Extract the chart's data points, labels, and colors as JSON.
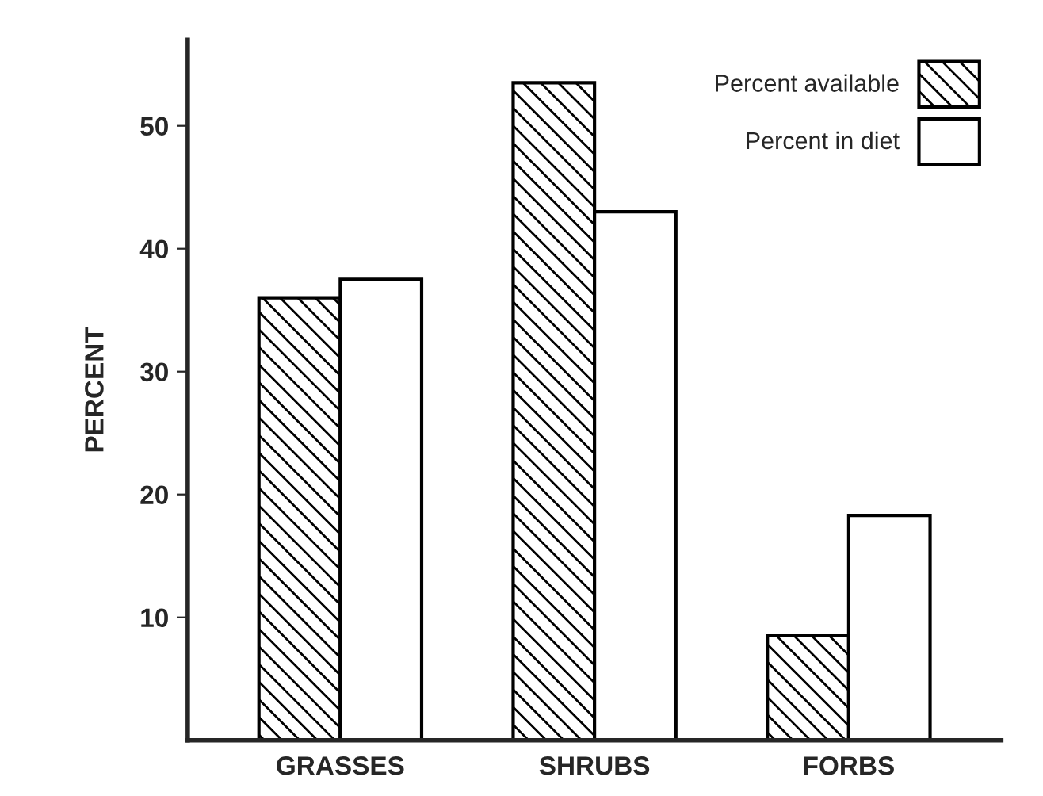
{
  "chart_data": {
    "type": "bar",
    "ylabel": "PERCENT",
    "categories": [
      "GRASSES",
      "SHRUBS",
      "FORBS"
    ],
    "series": [
      {
        "name": "Percent available",
        "color": "#000000",
        "values": [
          36,
          53.5,
          8.5
        ]
      },
      {
        "name": "Percent in diet",
        "color": "#ffffff",
        "values": [
          37.5,
          43,
          18.3
        ]
      }
    ],
    "ylim": [
      0,
      57
    ],
    "yticks": [
      10,
      20,
      30,
      40,
      50
    ],
    "grid": false,
    "legend": "upper right"
  }
}
